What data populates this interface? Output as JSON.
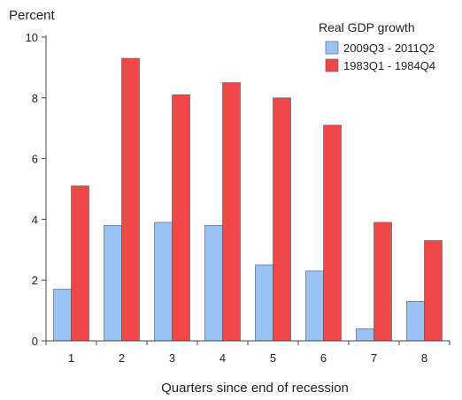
{
  "chart_data": {
    "type": "bar",
    "title": "",
    "ylabel": "Percent",
    "xlabel": "Quarters since end of recession",
    "categories": [
      "1",
      "2",
      "3",
      "4",
      "5",
      "6",
      "7",
      "8"
    ],
    "ylim": [
      0,
      10
    ],
    "yticks": [
      0,
      2,
      4,
      6,
      8,
      10
    ],
    "grid": false,
    "legend": {
      "title": "Real GDP growth",
      "placement": "top-right"
    },
    "series": [
      {
        "name": "2009Q3 - 2011Q2",
        "color": "#99c2f5",
        "values": [
          1.7,
          3.8,
          3.9,
          3.8,
          2.5,
          2.3,
          0.4,
          1.3
        ]
      },
      {
        "name": "1983Q1 - 1984Q4",
        "color": "#f04848",
        "values": [
          5.1,
          9.3,
          8.1,
          8.5,
          8.0,
          7.1,
          3.9,
          3.3
        ]
      }
    ]
  }
}
